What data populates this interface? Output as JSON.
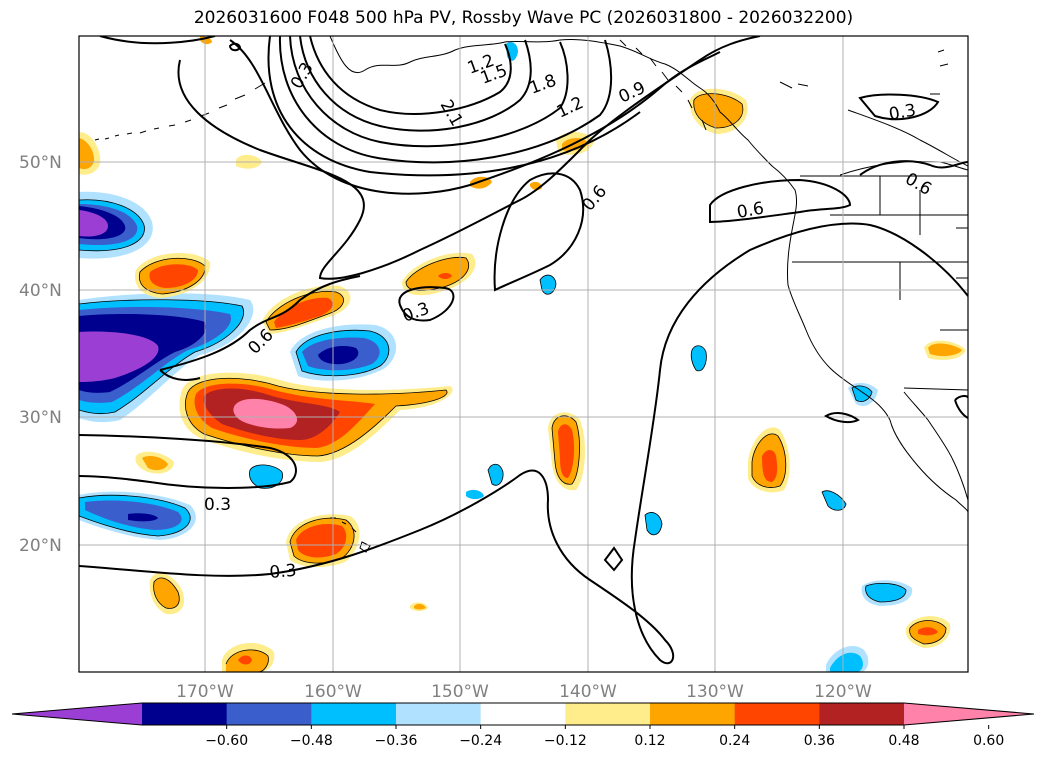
{
  "title": "2026031600 F048 500 hPa PV, Rossby Wave PC (2026031800 - 2026032200)",
  "lat_labels": [
    "50°N",
    "40°N",
    "30°N",
    "20°N"
  ],
  "lon_labels": [
    "170°W",
    "160°W",
    "150°W",
    "140°W",
    "130°W",
    "120°W"
  ],
  "contour_labels": [
    "1.2",
    "1.5",
    "1.8",
    "2.1",
    "1.2",
    "0.9",
    "0.6",
    "0.6",
    "0.6",
    "0.3",
    "0.3",
    "0.6",
    "0.3",
    "0.3",
    "0.3"
  ],
  "colorbar": {
    "ticks": [
      "−0.60",
      "−0.48",
      "−0.36",
      "−0.24",
      "−0.12",
      "0.12",
      "0.24",
      "0.36",
      "0.48",
      "0.60"
    ],
    "colors": [
      "#9b3fd4",
      "#00008f",
      "#3a5fcd",
      "#00bfff",
      "#b0e2ff",
      "#ffffff",
      "#ffec8b",
      "#ffa500",
      "#ff4500",
      "#b22222",
      "#ff82ab"
    ]
  },
  "colors": {
    "purple": "#9b3fd4",
    "navy": "#00008f",
    "blue": "#3a5fcd",
    "cyan": "#00bfff",
    "light_blue": "#b0e2ff",
    "yellow": "#ffec8b",
    "orange": "#ffa500",
    "red_orange": "#ff4500",
    "firebrick": "#b22222",
    "pink": "#ff82ab"
  }
}
